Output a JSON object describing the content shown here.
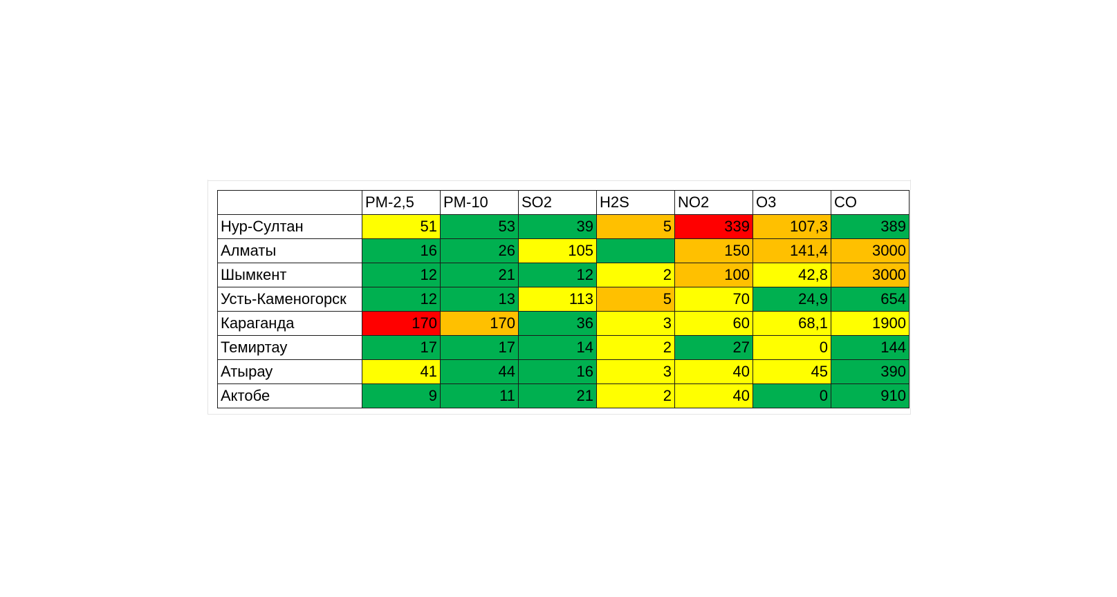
{
  "colors": {
    "green": "#00b050",
    "yellow": "#ffff00",
    "orange": "#ffc000",
    "red": "#ff0000",
    "white": "#ffffff"
  },
  "table": {
    "corner": "",
    "columns": [
      "PM-2,5",
      "PM-10",
      "SO2",
      "H2S",
      "NO2",
      "O3",
      "CO"
    ],
    "rows": [
      {
        "city": "Нур-Султан",
        "cells": [
          {
            "v": "51",
            "c": "yellow"
          },
          {
            "v": "53",
            "c": "green"
          },
          {
            "v": "39",
            "c": "green"
          },
          {
            "v": "5",
            "c": "orange"
          },
          {
            "v": "339",
            "c": "red"
          },
          {
            "v": "107,3",
            "c": "orange"
          },
          {
            "v": "389",
            "c": "green"
          }
        ]
      },
      {
        "city": "Алматы",
        "cells": [
          {
            "v": "16",
            "c": "green"
          },
          {
            "v": "26",
            "c": "green"
          },
          {
            "v": "105",
            "c": "yellow"
          },
          {
            "v": "",
            "c": "green"
          },
          {
            "v": "150",
            "c": "orange"
          },
          {
            "v": "141,4",
            "c": "orange"
          },
          {
            "v": "3000",
            "c": "orange"
          }
        ]
      },
      {
        "city": "Шымкент",
        "cells": [
          {
            "v": "12",
            "c": "green"
          },
          {
            "v": "21",
            "c": "green"
          },
          {
            "v": "12",
            "c": "green"
          },
          {
            "v": "2",
            "c": "yellow"
          },
          {
            "v": "100",
            "c": "orange"
          },
          {
            "v": "42,8",
            "c": "yellow"
          },
          {
            "v": "3000",
            "c": "orange"
          }
        ]
      },
      {
        "city": "Усть-Каменогорск",
        "cells": [
          {
            "v": "12",
            "c": "green"
          },
          {
            "v": "13",
            "c": "green"
          },
          {
            "v": "113",
            "c": "yellow"
          },
          {
            "v": "5",
            "c": "orange"
          },
          {
            "v": "70",
            "c": "yellow"
          },
          {
            "v": "24,9",
            "c": "green"
          },
          {
            "v": "654",
            "c": "green"
          }
        ]
      },
      {
        "city": "Караганда",
        "cells": [
          {
            "v": "170",
            "c": "red"
          },
          {
            "v": "170",
            "c": "orange"
          },
          {
            "v": "36",
            "c": "green"
          },
          {
            "v": "3",
            "c": "yellow"
          },
          {
            "v": "60",
            "c": "yellow"
          },
          {
            "v": "68,1",
            "c": "yellow"
          },
          {
            "v": "1900",
            "c": "yellow"
          }
        ]
      },
      {
        "city": "Темиртау",
        "cells": [
          {
            "v": "17",
            "c": "green"
          },
          {
            "v": "17",
            "c": "green"
          },
          {
            "v": "14",
            "c": "green"
          },
          {
            "v": "2",
            "c": "yellow"
          },
          {
            "v": "27",
            "c": "green"
          },
          {
            "v": "0",
            "c": "yellow"
          },
          {
            "v": "144",
            "c": "green"
          }
        ]
      },
      {
        "city": "Атырау",
        "cells": [
          {
            "v": "41",
            "c": "yellow"
          },
          {
            "v": "44",
            "c": "green"
          },
          {
            "v": "16",
            "c": "green"
          },
          {
            "v": "3",
            "c": "yellow"
          },
          {
            "v": "40",
            "c": "yellow"
          },
          {
            "v": "45",
            "c": "yellow"
          },
          {
            "v": "390",
            "c": "green"
          }
        ]
      },
      {
        "city": "Актобе",
        "cells": [
          {
            "v": "9",
            "c": "green"
          },
          {
            "v": "11",
            "c": "green"
          },
          {
            "v": "21",
            "c": "green"
          },
          {
            "v": "2",
            "c": "yellow"
          },
          {
            "v": "40",
            "c": "yellow"
          },
          {
            "v": "0",
            "c": "green"
          },
          {
            "v": "910",
            "c": "green"
          }
        ]
      }
    ]
  }
}
